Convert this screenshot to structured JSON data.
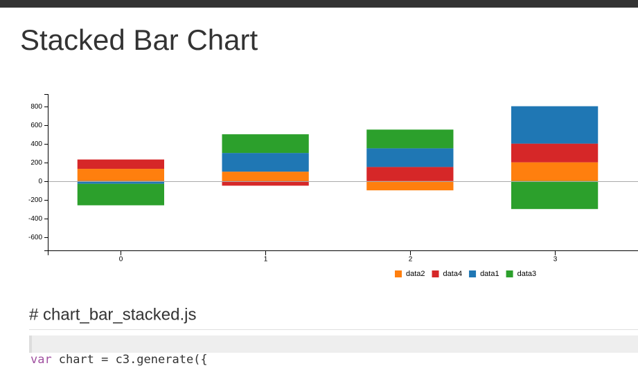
{
  "chart_data": {
    "type": "stacked-bar",
    "title": "Stacked Bar Chart",
    "categories": [
      "0",
      "1",
      "2",
      "3"
    ],
    "series": [
      {
        "name": "data2",
        "color": "#ff7f0e",
        "values": [
          130,
          100,
          -100,
          200
        ]
      },
      {
        "name": "data4",
        "color": "#d62728",
        "values": [
          100,
          -50,
          150,
          200
        ]
      },
      {
        "name": "data1",
        "color": "#1f77b4",
        "values": [
          -30,
          200,
          200,
          400
        ]
      },
      {
        "name": "data3",
        "color": "#2ca02c",
        "values": [
          -230,
          200,
          200,
          -300
        ]
      }
    ],
    "ylim": [
      -750,
      930
    ],
    "yticks": [
      -600,
      -400,
      -200,
      0,
      200,
      400,
      600,
      800
    ],
    "zero_line": true,
    "legend": "bottom"
  },
  "code": {
    "heading": "# chart_bar_stacked.js",
    "keyword": "var",
    "rest": "chart = c3.generate({"
  }
}
